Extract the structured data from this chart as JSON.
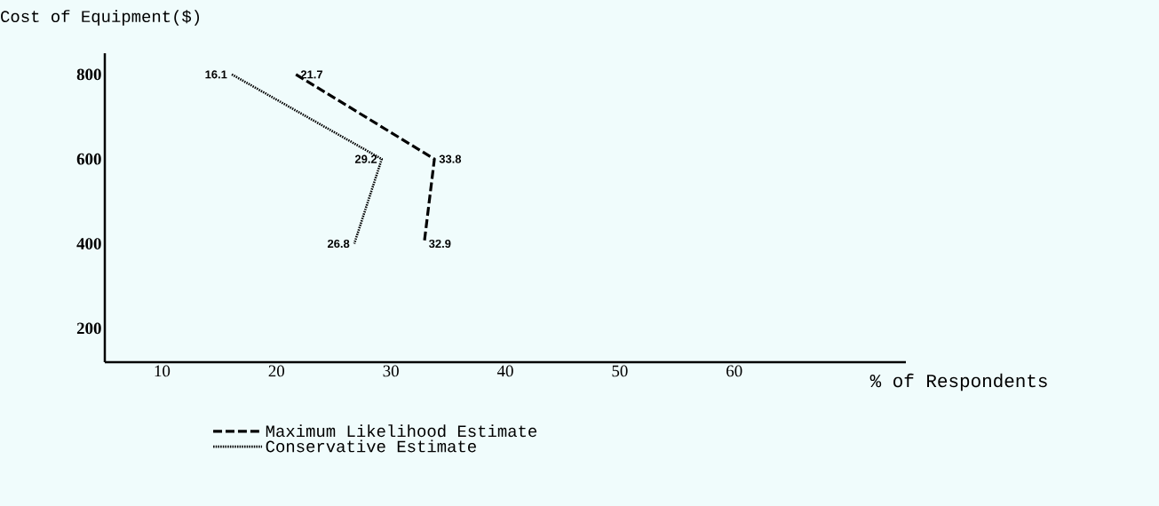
{
  "chart_data": {
    "type": "line",
    "ylabel": "Cost of Equipment($)",
    "xlabel": "% of Respondents",
    "xlim": [
      5,
      75
    ],
    "xticks": [
      10,
      20,
      30,
      40,
      50,
      60
    ],
    "ylim": [
      120,
      850
    ],
    "yticks": [
      200,
      400,
      600,
      800
    ],
    "series": [
      {
        "name": "Maximum Likelihood Estimate",
        "color": "#000000",
        "line_style": "dashed",
        "x": [
          800,
          600,
          400
        ],
        "values": [
          21.7,
          33.8,
          32.9
        ]
      },
      {
        "name": "Conservative Estimate",
        "color": "#000000",
        "line_style": "dotted",
        "x": [
          800,
          600,
          400
        ],
        "values": [
          16.1,
          29.2,
          26.8
        ]
      }
    ],
    "orientation": "horizontal",
    "data_labels": true,
    "legend": "bottom",
    "grid": false,
    "marker": "none"
  }
}
